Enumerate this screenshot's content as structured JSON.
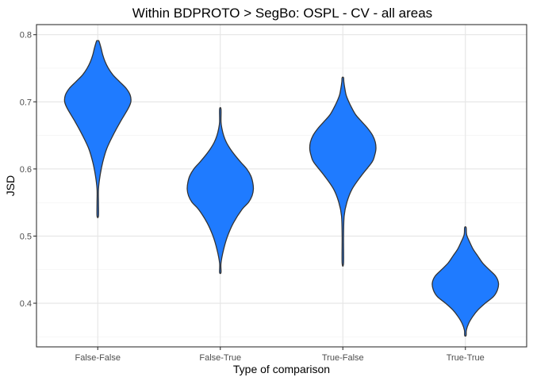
{
  "chart_data": {
    "type": "violin",
    "title": "Within BDPROTO > SegBo: OSPL - CV - all areas",
    "xlabel": "Type of comparison",
    "ylabel": "JSD",
    "ylim": [
      0.335,
      0.815
    ],
    "yticks": [
      0.4,
      0.5,
      0.6,
      0.7,
      0.8
    ],
    "ytick_labels": [
      "0.4",
      "0.5",
      "0.6",
      "0.7",
      "0.8"
    ],
    "grid": true,
    "fill_color": "#1f7bff",
    "outline_color": "#333333",
    "categories": [
      "False-False",
      "False-True",
      "True-False",
      "True-True"
    ],
    "violins": [
      {
        "category": "False-False",
        "profile": [
          [
            0.53,
            0.0
          ],
          [
            0.55,
            0.005
          ],
          [
            0.57,
            0.02
          ],
          [
            0.59,
            0.07
          ],
          [
            0.61,
            0.15
          ],
          [
            0.63,
            0.27
          ],
          [
            0.65,
            0.46
          ],
          [
            0.67,
            0.68
          ],
          [
            0.69,
            0.92
          ],
          [
            0.7,
            1.0
          ],
          [
            0.71,
            0.98
          ],
          [
            0.72,
            0.86
          ],
          [
            0.73,
            0.66
          ],
          [
            0.74,
            0.46
          ],
          [
            0.75,
            0.32
          ],
          [
            0.76,
            0.22
          ],
          [
            0.77,
            0.15
          ],
          [
            0.78,
            0.1
          ],
          [
            0.79,
            0.04
          ],
          [
            0.791,
            0.0
          ]
        ]
      },
      {
        "category": "False-True",
        "profile": [
          [
            0.446,
            0.0
          ],
          [
            0.46,
            0.02
          ],
          [
            0.48,
            0.1
          ],
          [
            0.5,
            0.22
          ],
          [
            0.52,
            0.4
          ],
          [
            0.54,
            0.66
          ],
          [
            0.55,
            0.85
          ],
          [
            0.56,
            0.96
          ],
          [
            0.57,
            1.0
          ],
          [
            0.58,
            0.98
          ],
          [
            0.59,
            0.92
          ],
          [
            0.6,
            0.8
          ],
          [
            0.61,
            0.62
          ],
          [
            0.62,
            0.45
          ],
          [
            0.63,
            0.3
          ],
          [
            0.64,
            0.18
          ],
          [
            0.65,
            0.1
          ],
          [
            0.66,
            0.05
          ],
          [
            0.67,
            0.02
          ],
          [
            0.689,
            0.0
          ]
        ]
      },
      {
        "category": "True-False",
        "profile": [
          [
            0.46,
            0.0
          ],
          [
            0.5,
            0.01
          ],
          [
            0.53,
            0.04
          ],
          [
            0.55,
            0.12
          ],
          [
            0.57,
            0.28
          ],
          [
            0.59,
            0.56
          ],
          [
            0.61,
            0.88
          ],
          [
            0.62,
            0.96
          ],
          [
            0.63,
            1.0
          ],
          [
            0.64,
            0.98
          ],
          [
            0.65,
            0.9
          ],
          [
            0.66,
            0.76
          ],
          [
            0.67,
            0.58
          ],
          [
            0.68,
            0.4
          ],
          [
            0.69,
            0.28
          ],
          [
            0.7,
            0.18
          ],
          [
            0.71,
            0.1
          ],
          [
            0.72,
            0.06
          ],
          [
            0.73,
            0.03
          ],
          [
            0.736,
            0.0
          ]
        ]
      },
      {
        "category": "True-True",
        "profile": [
          [
            0.352,
            0.0
          ],
          [
            0.36,
            0.03
          ],
          [
            0.37,
            0.1
          ],
          [
            0.38,
            0.22
          ],
          [
            0.39,
            0.38
          ],
          [
            0.4,
            0.6
          ],
          [
            0.41,
            0.85
          ],
          [
            0.42,
            0.97
          ],
          [
            0.43,
            1.0
          ],
          [
            0.44,
            0.92
          ],
          [
            0.45,
            0.72
          ],
          [
            0.46,
            0.52
          ],
          [
            0.47,
            0.38
          ],
          [
            0.48,
            0.24
          ],
          [
            0.49,
            0.14
          ],
          [
            0.5,
            0.05
          ],
          [
            0.505,
            0.03
          ],
          [
            0.513,
            0.0
          ]
        ]
      }
    ]
  }
}
